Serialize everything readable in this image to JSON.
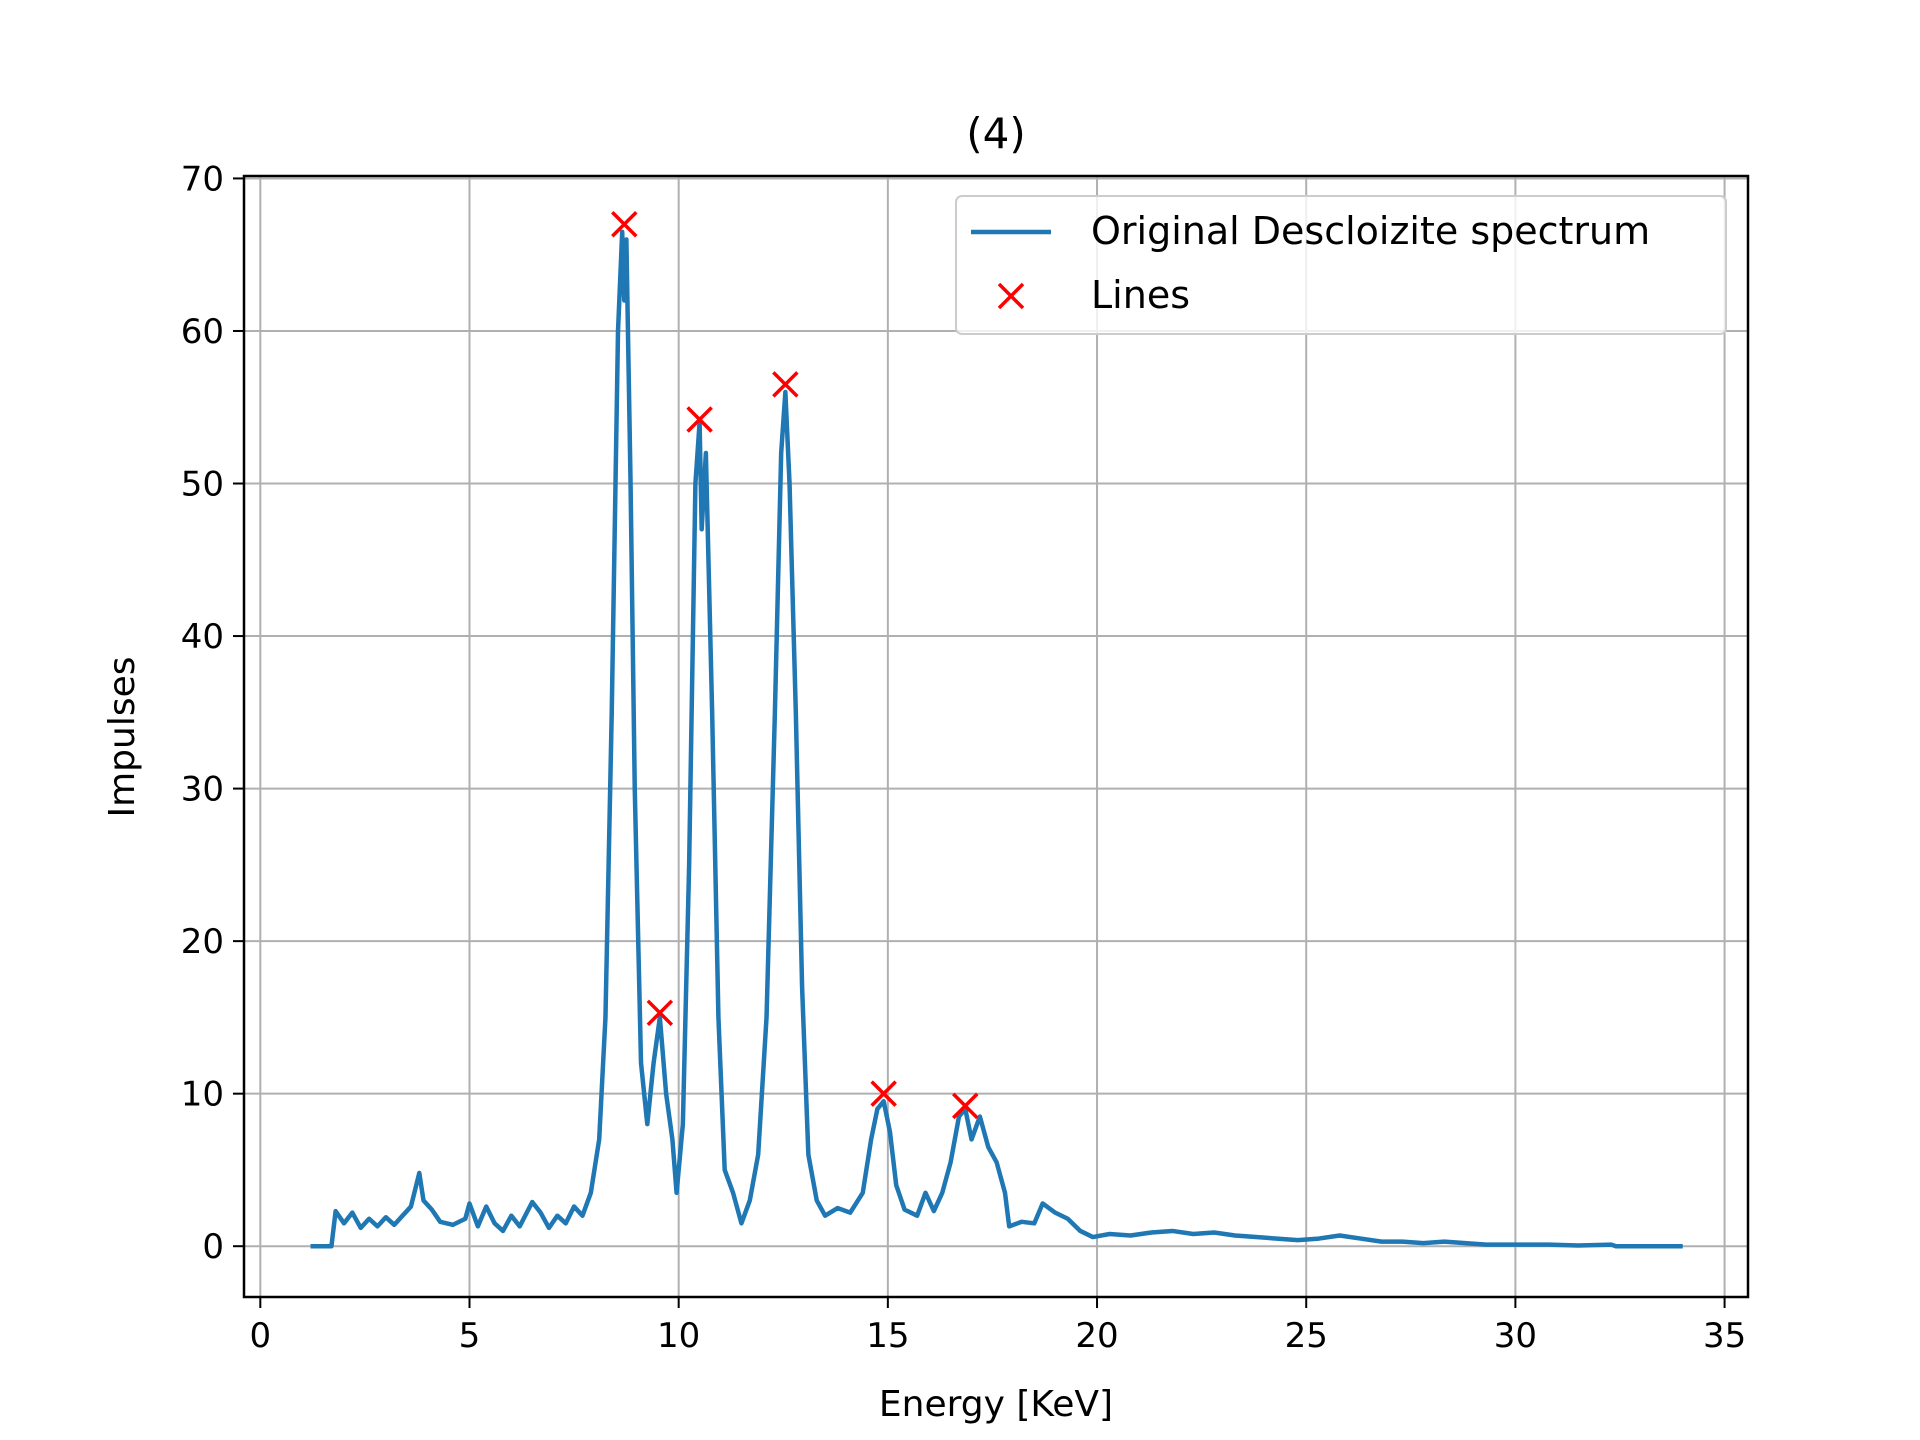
{
  "chart_data": {
    "type": "line",
    "title": "(4)",
    "x_label": "Energy [KeV]",
    "y_label": "Impulses",
    "xlim": [
      -0.39,
      35.56
    ],
    "ylim": [
      -3.33,
      70.16
    ],
    "xticks": [
      0,
      5,
      10,
      15,
      20,
      25,
      30,
      35
    ],
    "yticks": [
      0,
      10,
      20,
      30,
      40,
      50,
      60,
      70
    ],
    "grid": true,
    "legend": "upper right",
    "series": [
      {
        "name": "Original Descloizite spectrum",
        "type": "line",
        "color": "#1f77b4",
        "x": [
          1.2,
          1.7,
          1.8,
          2.0,
          2.2,
          2.4,
          2.6,
          2.8,
          3.0,
          3.2,
          3.4,
          3.6,
          3.8,
          3.9,
          4.1,
          4.3,
          4.6,
          4.9,
          5.0,
          5.2,
          5.4,
          5.6,
          5.8,
          6.0,
          6.2,
          6.5,
          6.7,
          6.9,
          7.1,
          7.3,
          7.5,
          7.7,
          7.9,
          8.1,
          8.25,
          8.4,
          8.55,
          8.65,
          8.7,
          8.75,
          8.85,
          8.95,
          9.1,
          9.25,
          9.4,
          9.55,
          9.7,
          9.85,
          9.95,
          10.1,
          10.25,
          10.4,
          10.5,
          10.55,
          10.65,
          10.8,
          10.95,
          11.1,
          11.3,
          11.5,
          11.7,
          11.9,
          12.1,
          12.3,
          12.45,
          12.55,
          12.65,
          12.8,
          12.95,
          13.1,
          13.3,
          13.5,
          13.8,
          14.1,
          14.4,
          14.6,
          14.75,
          14.9,
          15.05,
          15.2,
          15.4,
          15.7,
          15.9,
          16.1,
          16.3,
          16.5,
          16.7,
          16.85,
          17.0,
          17.2,
          17.4,
          17.6,
          17.8,
          17.9,
          18.2,
          18.5,
          18.7,
          19.0,
          19.3,
          19.6,
          19.9,
          20.3,
          20.8,
          21.3,
          21.8,
          22.3,
          22.8,
          23.3,
          23.8,
          24.3,
          24.8,
          25.3,
          25.8,
          26.3,
          26.8,
          27.3,
          27.8,
          28.3,
          28.8,
          29.3,
          30.0,
          30.8,
          31.5,
          32.3,
          32.4,
          34.0
        ],
        "values": [
          0,
          0,
          2.3,
          1.5,
          2.2,
          1.2,
          1.8,
          1.3,
          1.9,
          1.4,
          2.0,
          2.6,
          4.8,
          3.0,
          2.4,
          1.6,
          1.4,
          1.8,
          2.8,
          1.3,
          2.6,
          1.5,
          1.0,
          2.0,
          1.3,
          2.9,
          2.2,
          1.2,
          2.0,
          1.5,
          2.6,
          2.0,
          3.5,
          7.0,
          15,
          35,
          60,
          66.5,
          62,
          66,
          50,
          30,
          12,
          8,
          12,
          15,
          10,
          7,
          3.5,
          8,
          25,
          50,
          54,
          47,
          52,
          35,
          15,
          5,
          3.5,
          1.5,
          3.0,
          6,
          15,
          35,
          52,
          56,
          50,
          35,
          17,
          6,
          3.0,
          2.0,
          2.5,
          2.2,
          3.5,
          7,
          9,
          9.5,
          7.5,
          4,
          2.4,
          2.0,
          3.5,
          2.3,
          3.5,
          5.5,
          8.5,
          9,
          7,
          8.5,
          6.5,
          5.5,
          3.5,
          1.3,
          1.6,
          1.5,
          2.8,
          2.2,
          1.8,
          1.0,
          0.6,
          0.8,
          0.7,
          0.9,
          1.0,
          0.8,
          0.9,
          0.7,
          0.6,
          0.5,
          0.4,
          0.5,
          0.7,
          0.5,
          0.3,
          0.3,
          0.2,
          0.3,
          0.2,
          0.1,
          0.1,
          0.1,
          0.05,
          0.1,
          0,
          0
        ]
      },
      {
        "name": "Lines",
        "type": "scatter",
        "marker": "x",
        "color": "#ff0000",
        "x": [
          8.7,
          9.55,
          10.5,
          12.55,
          14.9,
          16.85
        ],
        "values": [
          67,
          15.3,
          54.2,
          56.5,
          10,
          9.2
        ]
      }
    ]
  }
}
